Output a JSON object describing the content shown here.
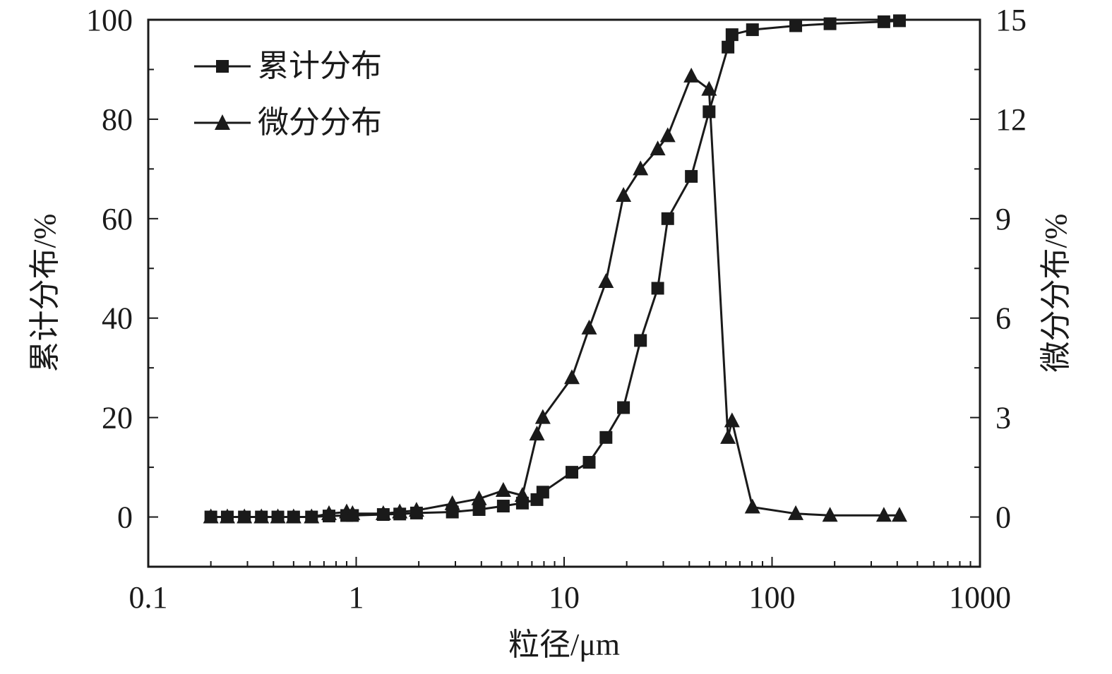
{
  "chart_data": {
    "type": "line",
    "xlabel": "粒径/μm",
    "ylabel": "累计分布/%",
    "y2label": "微分分布/%",
    "xscale": "log",
    "xlim": [
      0.1,
      1000
    ],
    "ylim": [
      -10,
      100
    ],
    "y2lim": [
      -1.5,
      15
    ],
    "xticks": [
      "0.1",
      "1",
      "10",
      "100",
      "1000"
    ],
    "yticks": [
      "0",
      "20",
      "40",
      "60",
      "80",
      "100"
    ],
    "y2ticks": [
      "0",
      "3",
      "6",
      "9",
      "12",
      "15"
    ],
    "legend_position": "top-left",
    "grid": false,
    "series": [
      {
        "name": "累计分布",
        "marker": "square",
        "axis": "left",
        "x": [
          0.2,
          0.24,
          0.29,
          0.35,
          0.42,
          0.5,
          0.61,
          0.74,
          0.9,
          0.96,
          1.35,
          1.62,
          1.95,
          2.9,
          3.9,
          5.1,
          6.3,
          7.4,
          7.9,
          10.9,
          13.2,
          15.9,
          19.3,
          23.3,
          28.2,
          31.5,
          40.9,
          49.8,
          61.4,
          64.2,
          80.5,
          130,
          190,
          345,
          410
        ],
        "values": [
          0,
          0,
          0,
          0,
          0,
          0,
          0,
          0.2,
          0.3,
          0.3,
          0.5,
          0.6,
          0.8,
          1.0,
          1.5,
          2.2,
          2.8,
          3.5,
          5,
          9,
          11,
          16,
          22,
          35.5,
          46,
          60,
          68.5,
          81.5,
          94.5,
          97,
          98,
          98.8,
          99.2,
          99.6,
          99.8
        ]
      },
      {
        "name": "微分分布",
        "marker": "triangle",
        "axis": "right",
        "x": [
          0.2,
          0.24,
          0.29,
          0.35,
          0.42,
          0.5,
          0.61,
          0.74,
          0.9,
          0.96,
          1.35,
          1.62,
          1.95,
          2.9,
          3.9,
          5.1,
          6.3,
          7.4,
          7.9,
          10.9,
          13.2,
          15.9,
          19.3,
          23.3,
          28.2,
          31.5,
          40.9,
          49.8,
          61.4,
          64.2,
          80.5,
          130,
          190,
          345,
          410
        ],
        "values": [
          0,
          0,
          0,
          0,
          0,
          0,
          0,
          0.1,
          0.15,
          0.1,
          0.1,
          0.15,
          0.2,
          0.4,
          0.55,
          0.8,
          0.65,
          2.5,
          3.0,
          4.2,
          5.7,
          7.1,
          9.7,
          10.5,
          11.1,
          11.5,
          13.3,
          12.9,
          2.4,
          2.9,
          0.3,
          0.1,
          0.05,
          0.05,
          0.05
        ]
      }
    ]
  }
}
